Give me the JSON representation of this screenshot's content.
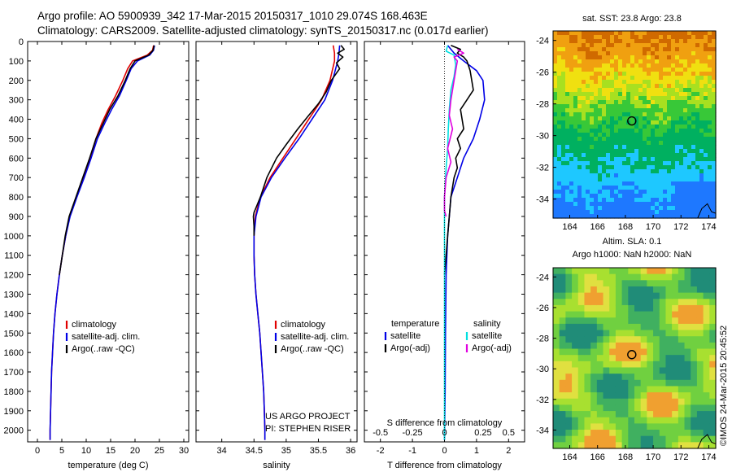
{
  "header": {
    "line1": "Argo profile: AO 5900939_342 17-Mar-2015 20150317_1010 29.074S 168.463E",
    "line2": "Climatology: CARS2009. Satellite-adjusted climatology: synTS_20150317.nc (0.017d earlier)"
  },
  "credit": "©IMOS 24-Mar-2015 20:45:52",
  "colors": {
    "climatology": "#e00000",
    "satellite": "#0000e6",
    "argo": "#000000",
    "sat_salinity": "#00e0e0",
    "argo_salinity": "#e000e0"
  },
  "chart_data": [
    {
      "type": "line",
      "id": "temperature",
      "xlabel": "temperature (deg C)",
      "ylabel": "",
      "xlim": [
        -2,
        31
      ],
      "ylim": [
        2060,
        0
      ],
      "xticks": [
        0,
        5,
        10,
        15,
        20,
        25,
        30
      ],
      "yticks": [
        0,
        100,
        200,
        300,
        400,
        500,
        600,
        700,
        800,
        900,
        1000,
        1100,
        1200,
        1300,
        1400,
        1500,
        1600,
        1700,
        1800,
        1900,
        2000
      ],
      "legend": {
        "position": "bottom-left",
        "entries": [
          "climatology",
          "satellite-adj. clim.",
          "Argo(..raw -QC)"
        ]
      },
      "series": [
        {
          "name": "climatology",
          "color": "#e00000",
          "points": [
            [
              23.8,
              20
            ],
            [
              23.6,
              45
            ],
            [
              22.5,
              70
            ],
            [
              19.5,
              100
            ],
            [
              18.5,
              140
            ],
            [
              17.5,
              200
            ],
            [
              16.0,
              280
            ],
            [
              14.5,
              350
            ],
            [
              13.2,
              420
            ],
            [
              12.0,
              500
            ],
            [
              10.8,
              600
            ],
            [
              9.5,
              700
            ],
            [
              8.0,
              800
            ],
            [
              6.6,
              900
            ],
            [
              5.8,
              1000
            ],
            [
              5.1,
              1100
            ],
            [
              4.5,
              1200
            ],
            [
              4.0,
              1300
            ],
            [
              3.6,
              1400
            ],
            [
              3.3,
              1500
            ],
            [
              3.1,
              1600
            ],
            [
              2.9,
              1700
            ],
            [
              2.8,
              1800
            ],
            [
              2.7,
              1900
            ],
            [
              2.6,
              2000
            ],
            [
              2.6,
              2050
            ]
          ]
        },
        {
          "name": "satellite-adj. clim.",
          "color": "#0000e6",
          "points": [
            [
              24.0,
              20
            ],
            [
              23.8,
              45
            ],
            [
              23.0,
              70
            ],
            [
              20.5,
              100
            ],
            [
              19.2,
              140
            ],
            [
              18.2,
              200
            ],
            [
              16.8,
              280
            ],
            [
              15.2,
              350
            ],
            [
              13.8,
              420
            ],
            [
              12.3,
              500
            ],
            [
              11.0,
              600
            ],
            [
              9.6,
              700
            ],
            [
              8.1,
              800
            ],
            [
              6.7,
              900
            ],
            [
              5.8,
              1000
            ],
            [
              5.1,
              1100
            ],
            [
              4.5,
              1200
            ],
            [
              4.0,
              1300
            ],
            [
              3.6,
              1400
            ],
            [
              3.3,
              1500
            ],
            [
              3.1,
              1600
            ],
            [
              2.9,
              1700
            ],
            [
              2.8,
              1800
            ],
            [
              2.7,
              1900
            ],
            [
              2.6,
              2000
            ],
            [
              2.6,
              2050
            ]
          ]
        },
        {
          "name": "Argo(..raw -QC)",
          "color": "#000000",
          "points": [
            [
              23.9,
              20
            ],
            [
              23.7,
              45
            ],
            [
              22.8,
              70
            ],
            [
              20.0,
              100
            ],
            [
              19.0,
              140
            ],
            [
              18.0,
              200
            ],
            [
              16.5,
              280
            ],
            [
              14.8,
              350
            ],
            [
              13.5,
              420
            ],
            [
              12.0,
              500
            ],
            [
              10.7,
              600
            ],
            [
              9.3,
              700
            ],
            [
              7.9,
              800
            ],
            [
              6.5,
              900
            ],
            [
              5.7,
              1000
            ],
            [
              5.1,
              1100
            ],
            [
              4.5,
              1200
            ]
          ]
        }
      ]
    },
    {
      "type": "line",
      "id": "salinity",
      "xlabel": "salinity",
      "ylabel": "",
      "xlim": [
        33.6,
        36.1
      ],
      "ylim": [
        2060,
        0
      ],
      "xticks": [
        34,
        34.5,
        35,
        35.5,
        36
      ],
      "legend": {
        "position": "bottom-right",
        "entries": [
          "climatology",
          "satellite-adj. clim.",
          "Argo(..raw -QC)"
        ]
      },
      "annotation": [
        "US ARGO PROJECT",
        "PI: STEPHEN RISER"
      ],
      "series": [
        {
          "name": "climatology",
          "color": "#e00000",
          "points": [
            [
              35.73,
              20
            ],
            [
              35.75,
              60
            ],
            [
              35.75,
              100
            ],
            [
              35.68,
              200
            ],
            [
              35.55,
              300
            ],
            [
              35.35,
              400
            ],
            [
              35.15,
              500
            ],
            [
              34.95,
              600
            ],
            [
              34.75,
              700
            ],
            [
              34.6,
              800
            ],
            [
              34.52,
              900
            ],
            [
              34.5,
              1000
            ],
            [
              34.5,
              1100
            ],
            [
              34.51,
              1200
            ],
            [
              34.53,
              1300
            ],
            [
              34.56,
              1400
            ],
            [
              34.59,
              1500
            ],
            [
              34.61,
              1600
            ],
            [
              34.63,
              1700
            ],
            [
              34.65,
              1800
            ],
            [
              34.66,
              1900
            ],
            [
              34.67,
              2000
            ],
            [
              34.67,
              2050
            ]
          ]
        },
        {
          "name": "satellite-adj. clim.",
          "color": "#0000e6",
          "points": [
            [
              35.83,
              20
            ],
            [
              35.82,
              60
            ],
            [
              35.8,
              100
            ],
            [
              35.72,
              200
            ],
            [
              35.6,
              300
            ],
            [
              35.4,
              400
            ],
            [
              35.2,
              500
            ],
            [
              34.98,
              600
            ],
            [
              34.77,
              700
            ],
            [
              34.61,
              800
            ],
            [
              34.53,
              900
            ],
            [
              34.5,
              1000
            ],
            [
              34.5,
              1100
            ],
            [
              34.51,
              1200
            ],
            [
              34.53,
              1300
            ],
            [
              34.56,
              1400
            ],
            [
              34.59,
              1500
            ],
            [
              34.61,
              1600
            ],
            [
              34.63,
              1700
            ],
            [
              34.65,
              1800
            ],
            [
              34.66,
              1900
            ],
            [
              34.67,
              2000
            ],
            [
              34.67,
              2050
            ]
          ]
        },
        {
          "name": "Argo(..raw -QC)",
          "color": "#000000",
          "points": [
            [
              35.85,
              20
            ],
            [
              35.9,
              40
            ],
            [
              35.8,
              60
            ],
            [
              35.88,
              80
            ],
            [
              35.78,
              110
            ],
            [
              35.83,
              140
            ],
            [
              35.7,
              200
            ],
            [
              35.62,
              260
            ],
            [
              35.5,
              320
            ],
            [
              35.35,
              380
            ],
            [
              35.18,
              450
            ],
            [
              35.0,
              530
            ],
            [
              34.85,
              600
            ],
            [
              34.7,
              700
            ],
            [
              34.6,
              800
            ],
            [
              34.5,
              880
            ],
            [
              34.49,
              900
            ],
            [
              34.5,
              950
            ],
            [
              34.5,
              1000
            ]
          ]
        }
      ]
    },
    {
      "type": "line",
      "id": "difference",
      "xlabel": "T difference from climatology",
      "xlabel_top": "S difference from climatology",
      "xlim": [
        -2.5,
        2.5
      ],
      "ylim": [
        2060,
        0
      ],
      "xticks": [
        -2,
        -1,
        0,
        1,
        2
      ],
      "xticks_top": [
        "-0.5",
        "-0.25",
        "0",
        "0.25",
        "0.5"
      ],
      "legend": {
        "position": "bottom",
        "entries": [
          "temperature",
          "satellite",
          "Argo(-adj)",
          "salinity",
          "satellite",
          "Argo(-adj)"
        ]
      },
      "series": [
        {
          "name": "temperature satellite",
          "color": "#0000e6",
          "points": [
            [
              0.1,
              20
            ],
            [
              0.3,
              60
            ],
            [
              0.6,
              100
            ],
            [
              1.0,
              150
            ],
            [
              1.2,
              200
            ],
            [
              1.25,
              300
            ],
            [
              1.1,
              400
            ],
            [
              0.9,
              500
            ],
            [
              0.6,
              600
            ],
            [
              0.4,
              700
            ],
            [
              0.2,
              800
            ],
            [
              0.15,
              900
            ],
            [
              0.1,
              1000
            ],
            [
              0.05,
              1200
            ],
            [
              0.03,
              1500
            ],
            [
              0.02,
              1800
            ],
            [
              0.0,
              2050
            ]
          ]
        },
        {
          "name": "temperature Argo(-adj)",
          "color": "#000000",
          "points": [
            [
              0.2,
              20
            ],
            [
              0.5,
              40
            ],
            [
              0.4,
              60
            ],
            [
              0.6,
              80
            ],
            [
              0.7,
              100
            ],
            [
              0.8,
              150
            ],
            [
              0.9,
              250
            ],
            [
              0.7,
              300
            ],
            [
              0.5,
              350
            ],
            [
              0.6,
              450
            ],
            [
              0.4,
              500
            ],
            [
              0.5,
              550
            ],
            [
              0.35,
              600
            ],
            [
              0.4,
              650
            ],
            [
              0.3,
              700
            ],
            [
              0.2,
              800
            ],
            [
              0.15,
              900
            ],
            [
              0.1,
              1000
            ],
            [
              0.05,
              1100
            ],
            [
              0.0,
              1200
            ]
          ]
        },
        {
          "name": "salinity satellite",
          "color": "#00e0e0",
          "points": [
            [
              0.1,
              20
            ],
            [
              0.05,
              50
            ],
            [
              0.3,
              70
            ],
            [
              0.35,
              120
            ],
            [
              0.3,
              180
            ],
            [
              0.2,
              250
            ],
            [
              0.15,
              350
            ],
            [
              0.12,
              450
            ],
            [
              0.1,
              550
            ],
            [
              0.05,
              650
            ],
            [
              0.0,
              800
            ],
            [
              0.0,
              1200
            ],
            [
              0.0,
              2050
            ]
          ]
        },
        {
          "name": "salinity Argo(-adj)",
          "color": "#e000e0",
          "points": [
            [
              0.4,
              40
            ],
            [
              0.6,
              60
            ],
            [
              0.3,
              80
            ],
            [
              0.4,
              100
            ],
            [
              0.3,
              200
            ],
            [
              0.2,
              300
            ],
            [
              0.15,
              380
            ],
            [
              0.25,
              450
            ],
            [
              0.1,
              550
            ],
            [
              0.2,
              620
            ],
            [
              0.05,
              700
            ],
            [
              0.0,
              800
            ],
            [
              0.0,
              870
            ],
            [
              0.05,
              900
            ]
          ]
        }
      ]
    },
    {
      "type": "heatmap",
      "id": "sst-map",
      "title": "sat. SST: 23.8 Argo: 23.8",
      "xlim": [
        162.8,
        174.5
      ],
      "ylim": [
        -35.2,
        -23.4
      ],
      "xticks": [
        164,
        166,
        168,
        170,
        172,
        174
      ],
      "yticks": [
        -24,
        -26,
        -28,
        -30,
        -32,
        -34
      ],
      "marker": [
        168.463,
        -29.074
      ]
    },
    {
      "type": "heatmap",
      "id": "sla-map",
      "title": "Altim. SLA: 0.1",
      "subtitle": "Argo h1000: NaN h2000: NaN",
      "xlim": [
        162.8,
        174.5
      ],
      "ylim": [
        -35.2,
        -23.4
      ],
      "xticks": [
        164,
        166,
        168,
        170,
        172,
        174
      ],
      "yticks": [
        -24,
        -26,
        -28,
        -30,
        -32,
        -34
      ],
      "marker": [
        168.463,
        -29.074
      ]
    }
  ]
}
